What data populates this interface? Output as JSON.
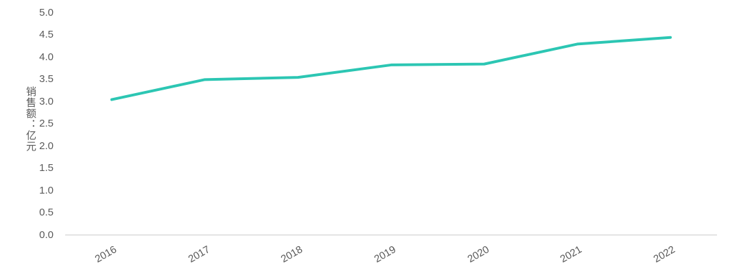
{
  "chart_data": {
    "type": "line",
    "title": "",
    "xlabel": "",
    "ylabel": "销售额：亿元",
    "categories": [
      "2016",
      "2017",
      "2018",
      "2019",
      "2020",
      "2021",
      "2022"
    ],
    "series": [
      {
        "name": "销售额",
        "values": [
          3.05,
          3.5,
          3.55,
          3.83,
          3.85,
          4.3,
          4.45
        ]
      }
    ],
    "ylim": [
      0,
      5
    ],
    "ytick_step": 0.5,
    "y_tick_labels": [
      "5.0",
      "4.5",
      "4.0",
      "3.5",
      "3.0",
      "2.5",
      "2.0",
      "1.5",
      "1.0",
      "0.5",
      "0.0"
    ],
    "grid": false,
    "legend_position": "none",
    "x_labels_rotated_deg": 30,
    "colors": {
      "line": "#2cc6b3",
      "axis": "#d9d9d9",
      "text": "#595959",
      "background": "#ffffff"
    }
  }
}
